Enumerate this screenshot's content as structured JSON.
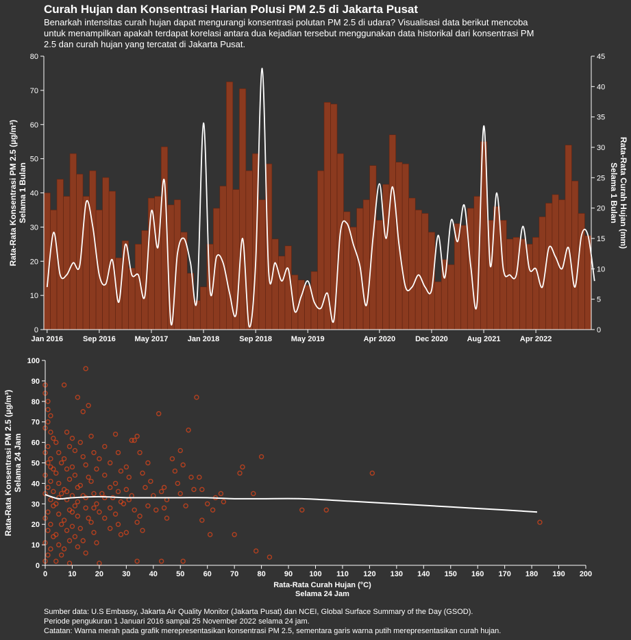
{
  "header": {
    "title": "Curah Hujan dan Konsentrasi Harian Polusi PM 2.5 di Jakarta Pusat",
    "subtitle": "Benarkah intensitas curah hujan dapat mengurangi konsentrasi polutan PM 2.5 di udara? Visualisasi data berikut mencoba untuk menampilkan apakah terdapat korelasi antara dua kejadian tersebut menggunakan data historikal dari konsentrasi PM 2.5 dan curah hujan yang tercatat di Jakarta Pusat."
  },
  "footer": {
    "line1": "Sumber data: U.S Embassy, Jakarta Air Quality Monitor (Jakarta Pusat) dan NCEI, Global Surface Summary of the Day (GSOD).",
    "line2": "Periode pengukuran 1 Januari 2016 sampai 25 November 2022 selama 24 jam.",
    "line3": "Catatan: Warna merah pada grafik merepresentasikan konsentrasi PM 2.5, sementara garis warna putih merepresentasikan curah hujan."
  },
  "colors": {
    "background": "#333333",
    "bar": "#8b3a1f",
    "bar_stroke": "#5e2412",
    "scatter": "#e0461a",
    "line": "#ffffff"
  },
  "chart_data": [
    {
      "type": "bar",
      "ylabel_left": [
        "Rata-Rata Konsentrasi PM 2.5 (µg/m³)",
        "Selama 1 Bulan"
      ],
      "ylabel_right": [
        "Rata-Rata Curah Hujan (mm)",
        "Selama 1 Bulan"
      ],
      "ylim_left": [
        0,
        80
      ],
      "ylim_right": [
        0,
        45
      ],
      "yticks_left": [
        0,
        10,
        20,
        30,
        40,
        50,
        60,
        70,
        80
      ],
      "yticks_right": [
        0,
        5,
        10,
        15,
        20,
        25,
        30,
        35,
        40,
        45
      ],
      "xtick_labels": [
        {
          "label": "Jan 2016",
          "index": 0
        },
        {
          "label": "Sep 2016",
          "index": 8
        },
        {
          "label": "May 2017",
          "index": 16
        },
        {
          "label": "Jan 2018",
          "index": 24
        },
        {
          "label": "Sep 2018",
          "index": 32
        },
        {
          "label": "May 2019",
          "index": 40
        },
        {
          "label": "Apr 2020",
          "index": 51
        },
        {
          "label": "Dec 2020",
          "index": 59
        },
        {
          "label": "Aug 2021",
          "index": 67
        },
        {
          "label": "Apr 2022",
          "index": 75
        }
      ],
      "series": [
        {
          "name": "PM 2.5",
          "kind": "bar",
          "axis": "left",
          "values": [
            40,
            35,
            44,
            39,
            51.5,
            45.5,
            39,
            46.5,
            35,
            44.5,
            40.5,
            21,
            26,
            18,
            25,
            29,
            38.5,
            39,
            53.5,
            36.5,
            38,
            28.5,
            16.5,
            8.5,
            12.5,
            25,
            35.5,
            42,
            72.5,
            41,
            70.5,
            46.5,
            51.5,
            38,
            48.5,
            26.5,
            21.5,
            24.5,
            16,
            14.5,
            13,
            17,
            46.5,
            66.5,
            66,
            51.5,
            34.5,
            30,
            35.5,
            38,
            48,
            32,
            42.5,
            57,
            49,
            48.5,
            38.5,
            35,
            34,
            28.5,
            14,
            20.5,
            19,
            31,
            30.5,
            35.5,
            39,
            55,
            32,
            36,
            32,
            26.5,
            27,
            26.5,
            25,
            27,
            33,
            37,
            39.5,
            38,
            54,
            43.5,
            34,
            27.5
          ]
        },
        {
          "name": "Curah Hujan",
          "kind": "line",
          "axis": "right",
          "values": [
            7,
            16,
            9,
            9,
            11,
            10.5,
            21,
            17,
            9,
            7.5,
            11.5,
            4.5,
            14,
            9,
            9,
            5.5,
            19.5,
            13.5,
            24.5,
            1,
            12.5,
            15,
            11,
            5,
            34,
            6.5,
            12,
            11,
            6,
            2.5,
            15,
            0.5,
            11,
            43,
            9.5,
            11,
            8,
            10,
            3,
            5.5,
            8,
            4.5,
            3.5,
            6,
            1.5,
            16,
            17.5,
            14,
            10.5,
            4,
            15,
            24,
            15,
            23.5,
            14,
            7,
            7,
            9,
            7,
            6.5,
            15.5,
            8.5,
            18,
            14.5,
            20.5,
            10.5,
            4.5,
            33.5,
            10.5,
            22.5,
            10,
            9,
            9,
            17,
            10,
            10,
            7,
            13.5,
            12,
            10,
            13.5,
            7,
            15.5,
            15.5,
            8
          ]
        }
      ]
    },
    {
      "type": "scatter",
      "xlabel": [
        "Rata-Rata Curah Hujan (°C)",
        "Selama 24 Jam"
      ],
      "ylabel": [
        "Rata-Rata Konsentrasi PM 2.5 (µg/m³)",
        "Selama 24 Jam"
      ],
      "xlim": [
        0,
        200
      ],
      "ylim": [
        0,
        100
      ],
      "xticks": [
        0,
        10,
        20,
        30,
        40,
        50,
        60,
        70,
        80,
        90,
        100,
        110,
        120,
        130,
        140,
        150,
        160,
        170,
        180,
        190,
        200
      ],
      "yticks": [
        0,
        10,
        20,
        30,
        40,
        50,
        60,
        70,
        80,
        90,
        100
      ],
      "points": [
        [
          0,
          88
        ],
        [
          0,
          84
        ],
        [
          1,
          80
        ],
        [
          1,
          76
        ],
        [
          2,
          73
        ],
        [
          1,
          70
        ],
        [
          0,
          67
        ],
        [
          2,
          65
        ],
        [
          3,
          62
        ],
        [
          1,
          58
        ],
        [
          0,
          55
        ],
        [
          2,
          52
        ],
        [
          1,
          50
        ],
        [
          3,
          47
        ],
        [
          0,
          44
        ],
        [
          2,
          41
        ],
        [
          1,
          38
        ],
        [
          0,
          35
        ],
        [
          2,
          32
        ],
        [
          3,
          29
        ],
        [
          1,
          26
        ],
        [
          0,
          23
        ],
        [
          2,
          20
        ],
        [
          1,
          17
        ],
        [
          3,
          14
        ],
        [
          0,
          11
        ],
        [
          2,
          8
        ],
        [
          1,
          5
        ],
        [
          0,
          2
        ],
        [
          4,
          60
        ],
        [
          5,
          55
        ],
        [
          6,
          50
        ],
        [
          4,
          45
        ],
        [
          5,
          40
        ],
        [
          6,
          35
        ],
        [
          4,
          30
        ],
        [
          5,
          25
        ],
        [
          6,
          20
        ],
        [
          4,
          15
        ],
        [
          5,
          10
        ],
        [
          6,
          5
        ],
        [
          7,
          88
        ],
        [
          8,
          65
        ],
        [
          9,
          58
        ],
        [
          7,
          52
        ],
        [
          8,
          47
        ],
        [
          9,
          42
        ],
        [
          7,
          37
        ],
        [
          8,
          32
        ],
        [
          9,
          27
        ],
        [
          7,
          22
        ],
        [
          8,
          17
        ],
        [
          9,
          12
        ],
        [
          7,
          8
        ],
        [
          10,
          62
        ],
        [
          11,
          56
        ],
        [
          12,
          82
        ],
        [
          10,
          48
        ],
        [
          11,
          44
        ],
        [
          12,
          38
        ],
        [
          10,
          34
        ],
        [
          11,
          29
        ],
        [
          12,
          24
        ],
        [
          10,
          19
        ],
        [
          11,
          14
        ],
        [
          12,
          9
        ],
        [
          13,
          60
        ],
        [
          14,
          75
        ],
        [
          15,
          96
        ],
        [
          16,
          78
        ],
        [
          14,
          53
        ],
        [
          15,
          49
        ],
        [
          16,
          43
        ],
        [
          13,
          39
        ],
        [
          14,
          34
        ],
        [
          15,
          28
        ],
        [
          16,
          23
        ],
        [
          13,
          18
        ],
        [
          14,
          12
        ],
        [
          15,
          6
        ],
        [
          17,
          63
        ],
        [
          18,
          55
        ],
        [
          19,
          47
        ],
        [
          20,
          52
        ],
        [
          17,
          41
        ],
        [
          18,
          35
        ],
        [
          19,
          30
        ],
        [
          20,
          26
        ],
        [
          17,
          21
        ],
        [
          18,
          16
        ],
        [
          19,
          11
        ],
        [
          22,
          58
        ],
        [
          24,
          50
        ],
        [
          22,
          44
        ],
        [
          24,
          38
        ],
        [
          22,
          33
        ],
        [
          24,
          28
        ],
        [
          22,
          23
        ],
        [
          24,
          18
        ],
        [
          26,
          64
        ],
        [
          27,
          55
        ],
        [
          28,
          46
        ],
        [
          26,
          40
        ],
        [
          27,
          36
        ],
        [
          28,
          31
        ],
        [
          26,
          25
        ],
        [
          27,
          20
        ],
        [
          28,
          15
        ],
        [
          30,
          48
        ],
        [
          31,
          43
        ],
        [
          32,
          61
        ],
        [
          33,
          61
        ],
        [
          34,
          63
        ],
        [
          30,
          37
        ],
        [
          31,
          32
        ],
        [
          33,
          27
        ],
        [
          34,
          21
        ],
        [
          30,
          16
        ],
        [
          35,
          55
        ],
        [
          36,
          45
        ],
        [
          37,
          38
        ],
        [
          35,
          24
        ],
        [
          36,
          17
        ],
        [
          38,
          50
        ],
        [
          39,
          41
        ],
        [
          40,
          34
        ],
        [
          42,
          74
        ],
        [
          41,
          27
        ],
        [
          43,
          36
        ],
        [
          44,
          38
        ],
        [
          45,
          32
        ],
        [
          45,
          23
        ],
        [
          47,
          52
        ],
        [
          48,
          46
        ],
        [
          49,
          40
        ],
        [
          50,
          56
        ],
        [
          51,
          49
        ],
        [
          52,
          29
        ],
        [
          53,
          66
        ],
        [
          54,
          43
        ],
        [
          55,
          37
        ],
        [
          56,
          82
        ],
        [
          57,
          43
        ],
        [
          58,
          37
        ],
        [
          58,
          22
        ],
        [
          60,
          30
        ],
        [
          62,
          27
        ],
        [
          63,
          33
        ],
        [
          65,
          35
        ],
        [
          66,
          31
        ],
        [
          61,
          15
        ],
        [
          70,
          15
        ],
        [
          72,
          45
        ],
        [
          73,
          48
        ],
        [
          77,
          35
        ],
        [
          78,
          7
        ],
        [
          80,
          53
        ],
        [
          83,
          4
        ],
        [
          95,
          27
        ],
        [
          104,
          27
        ],
        [
          121,
          45
        ],
        [
          183,
          21
        ],
        [
          2,
          48
        ],
        [
          3,
          36
        ],
        [
          5,
          33
        ],
        [
          8,
          36
        ],
        [
          10,
          26
        ],
        [
          12,
          31
        ],
        [
          15,
          33
        ],
        [
          18,
          28
        ],
        [
          21,
          35
        ],
        [
          25,
          33
        ],
        [
          29,
          30
        ],
        [
          32,
          34
        ],
        [
          38,
          29
        ],
        [
          44,
          28
        ],
        [
          50,
          35
        ],
        [
          51,
          2
        ],
        [
          43,
          2
        ],
        [
          34,
          2
        ],
        [
          20,
          1
        ],
        [
          9,
          1
        ],
        [
          4,
          2
        ]
      ],
      "trend": {
        "name": "Curah Hujan",
        "x": [
          0,
          5,
          10,
          20,
          30,
          40,
          50,
          60,
          70,
          80,
          95,
          110,
          130,
          150,
          170,
          182
        ],
        "y": [
          34.5,
          32.5,
          33,
          33.5,
          33,
          33,
          33,
          33,
          32.5,
          32.5,
          32.5,
          31.5,
          30,
          28.5,
          27,
          26
        ]
      }
    }
  ]
}
